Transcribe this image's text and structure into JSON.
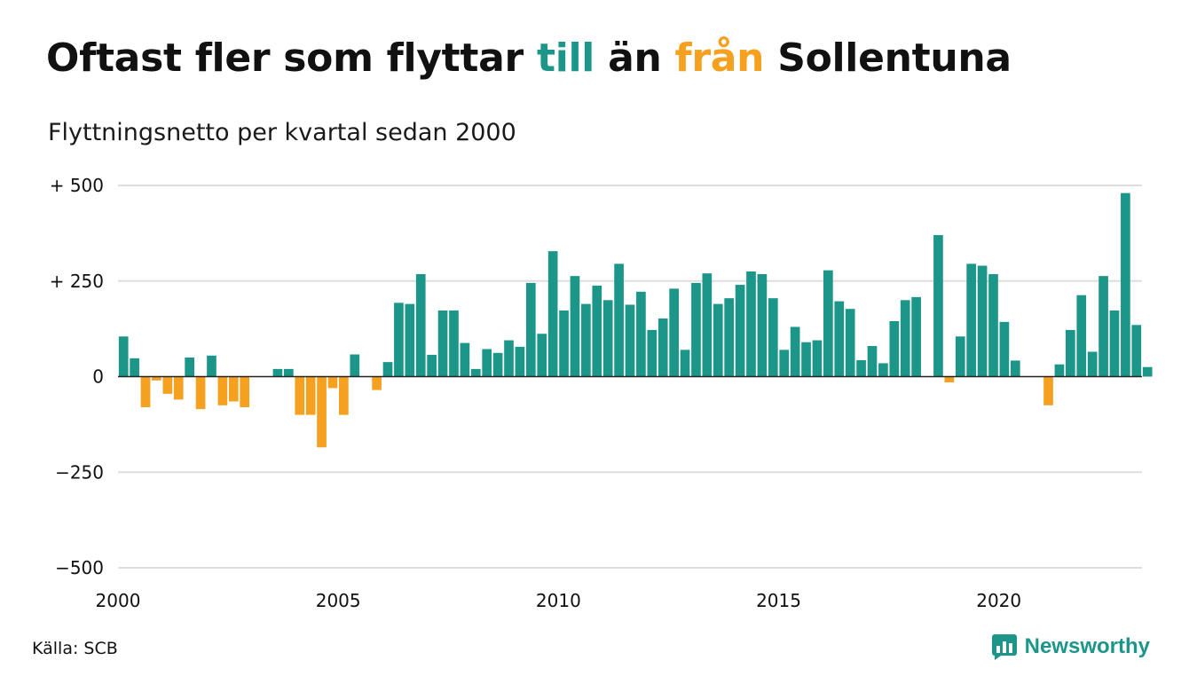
{
  "header": {
    "title_prefix": "Oftast fler som flyttar ",
    "title_till": "till",
    "title_middle": " än ",
    "title_fran": "från",
    "title_suffix": " Sollentuna",
    "subtitle": "Flyttningsnetto per kvartal sedan 2000"
  },
  "footer": {
    "source": "Källa: SCB",
    "brand": "Newsworthy"
  },
  "colors": {
    "positive": "#1b9688",
    "negative": "#f5a01e",
    "grid": "#dddddd",
    "text": "#111111"
  },
  "chart_data": {
    "type": "bar",
    "y_tick_labels": [
      "+ 500",
      "+ 250",
      "0",
      "−250",
      "−500"
    ],
    "y_ticks": [
      500,
      250,
      0,
      -250,
      -500
    ],
    "x_tick_labels": [
      "2000",
      "2005",
      "2010",
      "2015",
      "2020"
    ],
    "x_ticks": [
      2000,
      2005,
      2010,
      2015,
      2020
    ],
    "xlim": [
      2000,
      2023.25
    ],
    "ylim": [
      -500,
      500
    ],
    "grid": true,
    "x_start": 2000,
    "quarter_step": 0.25,
    "values": [
      105,
      48,
      -80,
      -10,
      -45,
      -60,
      50,
      -85,
      55,
      -75,
      -65,
      -80,
      0,
      0,
      20,
      20,
      -100,
      -100,
      -185,
      -30,
      -100,
      58,
      0,
      -35,
      38,
      193,
      190,
      268,
      57,
      173,
      173,
      88,
      20,
      72,
      62,
      95,
      78,
      245,
      112,
      328,
      173,
      263,
      190,
      238,
      200,
      295,
      188,
      222,
      122,
      152,
      230,
      70,
      245,
      270,
      190,
      205,
      240,
      275,
      268,
      205,
      70,
      130,
      90,
      95,
      278,
      197,
      177,
      43,
      80,
      35,
      145,
      200,
      208,
      0,
      370,
      -15,
      105,
      295,
      290,
      268,
      143,
      42,
      0,
      0,
      -75,
      32,
      122,
      213,
      65,
      263,
      173,
      480,
      135,
      25
    ]
  }
}
